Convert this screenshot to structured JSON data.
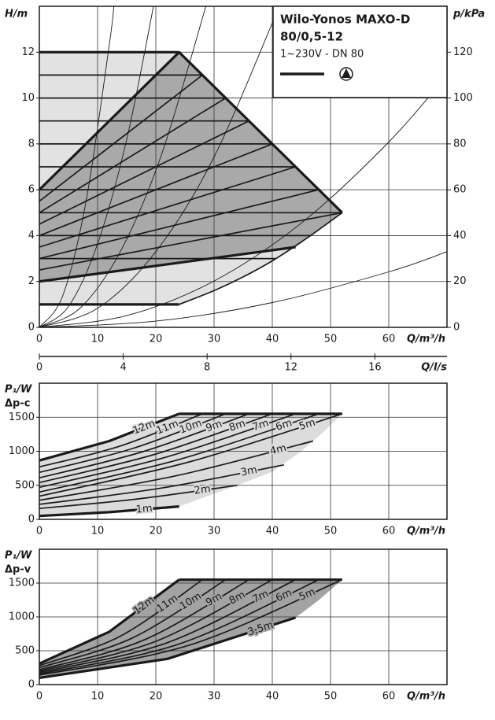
{
  "chart_data": [
    {
      "type": "line",
      "title": "Wilo-Yonos MAXO-D",
      "subtitle": "80/0,5-12",
      "annotation": "1~230V - DN 80",
      "xlabel": "Q/m³/h",
      "ylabel": "H/m",
      "y2label": "p/kPa",
      "x2label": "Q/l/s",
      "xlim": [
        0,
        70
      ],
      "xticks": [
        0,
        10,
        20,
        30,
        40,
        50,
        60
      ],
      "ylim": [
        0,
        14
      ],
      "yticks": [
        0,
        2,
        4,
        6,
        8,
        10,
        12
      ],
      "y2lim": [
        0,
        140
      ],
      "y2ticks": [
        0,
        20,
        40,
        60,
        80,
        100,
        120
      ],
      "x2lim": [
        0,
        19.44
      ],
      "x2ticks": [
        0,
        4,
        8,
        12,
        16
      ],
      "grid": true,
      "line_color": "#1a1a1a",
      "areas": [
        {
          "color": "#e2e2e2",
          "x": [
            0,
            24,
            52,
            46,
            40,
            35,
            30,
            24,
            0
          ],
          "values": [
            12,
            12,
            5,
            3.9,
            2.9,
            2.2,
            1.6,
            1,
            1
          ]
        },
        {
          "color": "#a9a9a9",
          "x": [
            0,
            24,
            52,
            44,
            0
          ],
          "values": [
            6,
            12,
            5,
            3.5,
            2
          ]
        }
      ],
      "series": [
        {
          "style": "thick",
          "x": [
            0,
            24,
            52
          ],
          "values": [
            12,
            12,
            5
          ]
        },
        {
          "style": "thick",
          "x": [
            0,
            24
          ],
          "values": [
            1,
            1
          ]
        },
        {
          "style": "medium",
          "x": [
            24,
            30,
            35,
            40,
            46,
            52
          ],
          "values": [
            1,
            1.6,
            2.2,
            2.9,
            3.9,
            5
          ]
        },
        {
          "style": "thick",
          "x": [
            0,
            44
          ],
          "values": [
            2,
            3.5
          ]
        },
        {
          "style": "thick",
          "x": [
            0,
            24
          ],
          "values": [
            6,
            12
          ]
        },
        {
          "style": "medium",
          "x": [
            0,
            28
          ],
          "values": [
            5.5,
            11
          ]
        },
        {
          "style": "medium",
          "x": [
            0,
            32
          ],
          "values": [
            5,
            10
          ]
        },
        {
          "style": "medium",
          "x": [
            0,
            36
          ],
          "values": [
            4.5,
            9
          ]
        },
        {
          "style": "medium",
          "x": [
            0,
            40
          ],
          "values": [
            4,
            8
          ]
        },
        {
          "style": "medium",
          "x": [
            0,
            44
          ],
          "values": [
            3.5,
            7
          ]
        },
        {
          "style": "medium",
          "x": [
            0,
            48
          ],
          "values": [
            3,
            6
          ]
        },
        {
          "style": "medium",
          "x": [
            0,
            52
          ],
          "values": [
            2.5,
            5
          ]
        },
        {
          "style": "medium",
          "x": [
            0,
            28
          ],
          "values": [
            11,
            11
          ]
        },
        {
          "style": "medium",
          "x": [
            0,
            32
          ],
          "values": [
            10,
            10
          ]
        },
        {
          "style": "medium",
          "x": [
            0,
            36
          ],
          "values": [
            9,
            9
          ]
        },
        {
          "style": "medium",
          "x": [
            0,
            40
          ],
          "values": [
            8,
            8
          ]
        },
        {
          "style": "medium",
          "x": [
            0,
            44
          ],
          "values": [
            7,
            7
          ]
        },
        {
          "style": "medium",
          "x": [
            0,
            48
          ],
          "values": [
            6,
            6
          ]
        },
        {
          "style": "medium",
          "x": [
            0,
            52
          ],
          "values": [
            5,
            5
          ]
        },
        {
          "style": "medium",
          "x": [
            0,
            46.7
          ],
          "values": [
            4,
            4
          ]
        },
        {
          "style": "medium",
          "x": [
            0,
            40.5
          ],
          "values": [
            3,
            3
          ]
        },
        {
          "style": "thin",
          "x": [
            0,
            4,
            8,
            12,
            12.8
          ],
          "values": [
            0,
            1.37,
            5.47,
            12.31,
            14
          ]
        },
        {
          "style": "thin",
          "x": [
            0,
            5,
            10,
            15,
            19.6
          ],
          "values": [
            0,
            0.91,
            3.64,
            8.19,
            14
          ]
        },
        {
          "style": "thin",
          "x": [
            0,
            7,
            14,
            21,
            28.6
          ],
          "values": [
            0,
            0.84,
            3.35,
            7.55,
            14
          ]
        },
        {
          "style": "thin",
          "x": [
            0,
            10,
            20,
            30,
            41.2
          ],
          "values": [
            0,
            0.83,
            3.3,
            7.43,
            14
          ]
        },
        {
          "style": "thin",
          "x": [
            0,
            15,
            30,
            45,
            60,
            70
          ],
          "values": [
            0,
            0.51,
            2.02,
            4.55,
            8.08,
            11
          ]
        },
        {
          "style": "thin",
          "x": [
            0,
            20,
            40,
            60,
            70
          ],
          "values": [
            0,
            0.27,
            1.08,
            2.42,
            3.3
          ]
        }
      ]
    },
    {
      "type": "line",
      "xlabel": "Q/m³/h",
      "ylabel": "P₁/W",
      "control_mode": "Δp-c",
      "xlim": [
        0,
        70
      ],
      "xticks": [
        0,
        10,
        20,
        30,
        40,
        50,
        60
      ],
      "ylim": [
        0,
        2000
      ],
      "yticks": [
        0,
        500,
        1000,
        1500
      ],
      "grid": true,
      "line_color": "#1a1a1a",
      "areas": [
        {
          "color": "#dcdcdc",
          "x": [
            0,
            12,
            24,
            52,
            49,
            45,
            40,
            34,
            24,
            12,
            0
          ],
          "values": [
            865,
            1150,
            1550,
            1550,
            1300,
            1000,
            700,
            500,
            190,
            105,
            50
          ]
        }
      ],
      "series": [
        {
          "style": "thick",
          "x": [
            24,
            52
          ],
          "values": [
            1550,
            1550
          ]
        },
        {
          "name": "12m",
          "style": "thick",
          "x": [
            0,
            12,
            24
          ],
          "values": [
            865,
            1150,
            1550
          ]
        },
        {
          "name": "11m",
          "style": "medium",
          "x": [
            0,
            14,
            28
          ],
          "values": [
            770,
            1080,
            1550
          ]
        },
        {
          "name": "10m",
          "style": "medium",
          "x": [
            0,
            16,
            32
          ],
          "values": [
            690,
            1040,
            1550
          ]
        },
        {
          "name": "9m",
          "style": "medium",
          "x": [
            0,
            18,
            36
          ],
          "values": [
            610,
            1000,
            1550
          ]
        },
        {
          "name": "8m",
          "style": "medium",
          "x": [
            0,
            20,
            40
          ],
          "values": [
            540,
            960,
            1550
          ]
        },
        {
          "name": "7m",
          "style": "medium",
          "x": [
            0,
            22,
            44
          ],
          "values": [
            470,
            920,
            1550
          ]
        },
        {
          "name": "6m",
          "style": "medium",
          "x": [
            0,
            24,
            48
          ],
          "values": [
            400,
            880,
            1550
          ]
        },
        {
          "name": "5m",
          "style": "medium",
          "x": [
            0,
            26,
            52
          ],
          "values": [
            340,
            850,
            1550
          ]
        },
        {
          "name": "4m",
          "style": "medium",
          "x": [
            0,
            23.5,
            47
          ],
          "values": [
            280,
            640,
            1150
          ]
        },
        {
          "name": "3m",
          "style": "medium",
          "x": [
            0,
            21,
            42
          ],
          "values": [
            220,
            460,
            800
          ]
        },
        {
          "name": "2m",
          "style": "medium",
          "x": [
            0,
            17,
            34
          ],
          "values": [
            160,
            300,
            500
          ]
        },
        {
          "name": "1m",
          "style": "thick",
          "x": [
            0,
            12,
            24
          ],
          "values": [
            50,
            105,
            190
          ]
        }
      ]
    },
    {
      "type": "line",
      "xlabel": "Q/m³/h",
      "ylabel": "P₁/W",
      "control_mode": "Δp-v",
      "xlim": [
        0,
        70
      ],
      "xticks": [
        0,
        10,
        20,
        30,
        40,
        50,
        60
      ],
      "ylim": [
        0,
        2000
      ],
      "yticks": [
        0,
        500,
        1000,
        1500
      ],
      "grid": true,
      "line_color": "#1a1a1a",
      "areas": [
        {
          "color": "#a3a3a3",
          "x": [
            0,
            12,
            24,
            52,
            48,
            44,
            22,
            0
          ],
          "values": [
            310,
            780,
            1550,
            1550,
            1250,
            990,
            380,
            100
          ]
        }
      ],
      "series": [
        {
          "style": "thick",
          "x": [
            24,
            52
          ],
          "values": [
            1550,
            1550
          ]
        },
        {
          "name": "12m",
          "style": "thick",
          "x": [
            0,
            12,
            24
          ],
          "values": [
            310,
            780,
            1550
          ]
        },
        {
          "name": "11m",
          "style": "medium",
          "x": [
            0,
            14,
            28
          ],
          "values": [
            280,
            720,
            1550
          ]
        },
        {
          "name": "10m",
          "style": "medium",
          "x": [
            0,
            16,
            32
          ],
          "values": [
            250,
            690,
            1550
          ]
        },
        {
          "name": "9m",
          "style": "medium",
          "x": [
            0,
            18,
            36
          ],
          "values": [
            220,
            660,
            1550
          ]
        },
        {
          "name": "8m",
          "style": "medium",
          "x": [
            0,
            20,
            40
          ],
          "values": [
            200,
            640,
            1550
          ]
        },
        {
          "name": "7m",
          "style": "medium",
          "x": [
            0,
            22,
            44
          ],
          "values": [
            180,
            620,
            1550
          ]
        },
        {
          "name": "6m",
          "style": "medium",
          "x": [
            0,
            24,
            48
          ],
          "values": [
            160,
            600,
            1550
          ]
        },
        {
          "name": "5m",
          "style": "medium",
          "x": [
            0,
            26,
            52
          ],
          "values": [
            140,
            590,
            1550
          ]
        },
        {
          "name": "3,5m",
          "style": "thick",
          "x": [
            0,
            22,
            44
          ],
          "values": [
            100,
            380,
            990
          ]
        }
      ]
    }
  ]
}
